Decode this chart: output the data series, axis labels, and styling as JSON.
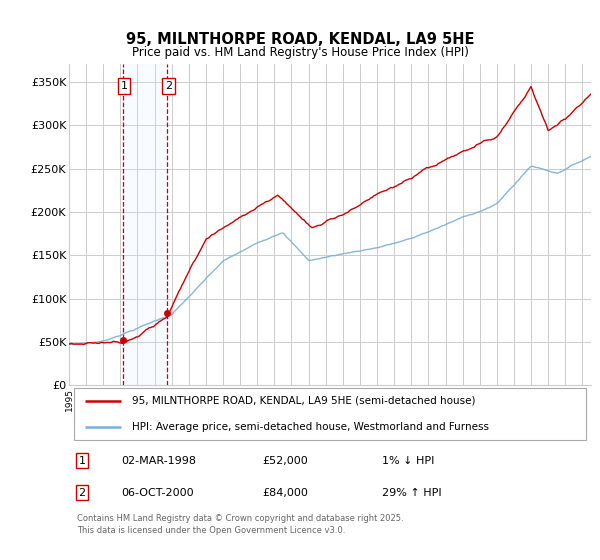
{
  "title": "95, MILNTHORPE ROAD, KENDAL, LA9 5HE",
  "subtitle": "Price paid vs. HM Land Registry's House Price Index (HPI)",
  "legend_line1": "95, MILNTHORPE ROAD, KENDAL, LA9 5HE (semi-detached house)",
  "legend_line2": "HPI: Average price, semi-detached house, Westmorland and Furness",
  "footer": "Contains HM Land Registry data © Crown copyright and database right 2025.\nThis data is licensed under the Open Government Licence v3.0.",
  "sale1_date": "02-MAR-1998",
  "sale1_price": 52000,
  "sale1_label": "1% ↓ HPI",
  "sale2_date": "06-OCT-2000",
  "sale2_price": 84000,
  "sale2_label": "29% ↑ HPI",
  "red_color": "#cc0000",
  "blue_color": "#7aafd4",
  "shade_color": "#ddeeff",
  "background_color": "#ffffff",
  "grid_color": "#cccccc",
  "ylim": [
    0,
    370000
  ],
  "yticks": [
    0,
    50000,
    100000,
    150000,
    200000,
    250000,
    300000,
    350000
  ],
  "ytick_labels": [
    "£0",
    "£50K",
    "£100K",
    "£150K",
    "£200K",
    "£250K",
    "£300K",
    "£350K"
  ],
  "sale1_x": 1998.17,
  "sale1_y": 52000,
  "sale2_x": 2000.75,
  "sale2_y": 84000,
  "xmin": 1995,
  "xmax": 2025.5
}
